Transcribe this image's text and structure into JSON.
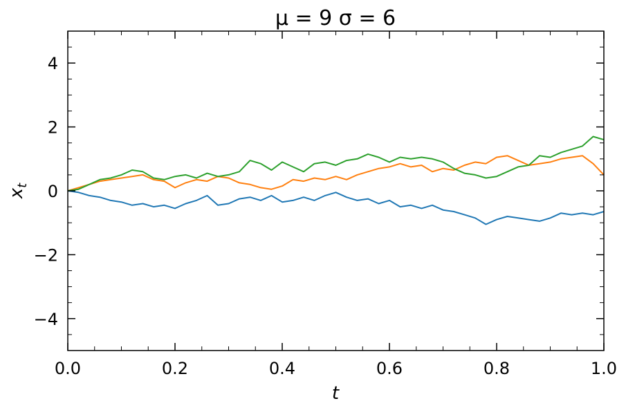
{
  "chart_data": {
    "type": "line",
    "title": "μ =  9 σ =  6",
    "xlabel": "t",
    "ylabel": "x_t",
    "xlim": [
      0.0,
      1.0
    ],
    "ylim": [
      -5,
      5
    ],
    "x_ticks": [
      0.0,
      0.2,
      0.4,
      0.6,
      0.8,
      1.0
    ],
    "x_tick_labels": [
      "0.0",
      "0.2",
      "0.4",
      "0.6",
      "0.8",
      "1.0"
    ],
    "y_ticks": [
      -4,
      -2,
      0,
      2,
      4
    ],
    "y_tick_labels": [
      "−4",
      "−2",
      "0",
      "2",
      "4"
    ],
    "grid": false,
    "series": [
      {
        "color": "#1f77b4",
        "x": [
          0.0,
          0.02,
          0.04,
          0.06,
          0.08,
          0.1,
          0.12,
          0.14,
          0.16,
          0.18,
          0.2,
          0.22,
          0.24,
          0.26,
          0.28,
          0.3,
          0.32,
          0.34,
          0.36,
          0.38,
          0.4,
          0.42,
          0.44,
          0.46,
          0.48,
          0.5,
          0.52,
          0.54,
          0.56,
          0.58,
          0.6,
          0.62,
          0.64,
          0.66,
          0.68,
          0.7,
          0.72,
          0.74,
          0.76,
          0.78,
          0.8,
          0.82,
          0.84,
          0.86,
          0.88,
          0.9,
          0.92,
          0.94,
          0.96,
          0.98,
          1.0
        ],
        "values": [
          0.0,
          -0.05,
          -0.15,
          -0.2,
          -0.3,
          -0.35,
          -0.45,
          -0.4,
          -0.5,
          -0.45,
          -0.55,
          -0.4,
          -0.3,
          -0.15,
          -0.45,
          -0.4,
          -0.25,
          -0.2,
          -0.3,
          -0.15,
          -0.35,
          -0.3,
          -0.2,
          -0.3,
          -0.15,
          -0.05,
          -0.2,
          -0.3,
          -0.25,
          -0.4,
          -0.3,
          -0.5,
          -0.45,
          -0.55,
          -0.45,
          -0.6,
          -0.65,
          -0.75,
          -0.85,
          -1.05,
          -0.9,
          -0.8,
          -0.85,
          -0.9,
          -0.95,
          -0.85,
          -0.7,
          -0.75,
          -0.7,
          -0.75,
          -0.65
        ]
      },
      {
        "color": "#ff7f0e",
        "x": [
          0.0,
          0.02,
          0.04,
          0.06,
          0.08,
          0.1,
          0.12,
          0.14,
          0.16,
          0.18,
          0.2,
          0.22,
          0.24,
          0.26,
          0.28,
          0.3,
          0.32,
          0.34,
          0.36,
          0.38,
          0.4,
          0.42,
          0.44,
          0.46,
          0.48,
          0.5,
          0.52,
          0.54,
          0.56,
          0.58,
          0.6,
          0.62,
          0.64,
          0.66,
          0.68,
          0.7,
          0.72,
          0.74,
          0.76,
          0.78,
          0.8,
          0.82,
          0.84,
          0.86,
          0.88,
          0.9,
          0.92,
          0.94,
          0.96,
          0.98,
          1.0
        ],
        "values": [
          0.0,
          0.1,
          0.2,
          0.3,
          0.35,
          0.4,
          0.45,
          0.5,
          0.35,
          0.3,
          0.1,
          0.25,
          0.35,
          0.3,
          0.45,
          0.4,
          0.25,
          0.2,
          0.1,
          0.05,
          0.15,
          0.35,
          0.3,
          0.4,
          0.35,
          0.45,
          0.35,
          0.5,
          0.6,
          0.7,
          0.75,
          0.85,
          0.75,
          0.8,
          0.6,
          0.7,
          0.65,
          0.8,
          0.9,
          0.85,
          1.05,
          1.1,
          0.95,
          0.8,
          0.85,
          0.9,
          1.0,
          1.05,
          1.1,
          0.85,
          0.5
        ]
      },
      {
        "color": "#2ca02c",
        "x": [
          0.0,
          0.02,
          0.04,
          0.06,
          0.08,
          0.1,
          0.12,
          0.14,
          0.16,
          0.18,
          0.2,
          0.22,
          0.24,
          0.26,
          0.28,
          0.3,
          0.32,
          0.34,
          0.36,
          0.38,
          0.4,
          0.42,
          0.44,
          0.46,
          0.48,
          0.5,
          0.52,
          0.54,
          0.56,
          0.58,
          0.6,
          0.62,
          0.64,
          0.66,
          0.68,
          0.7,
          0.72,
          0.74,
          0.76,
          0.78,
          0.8,
          0.82,
          0.84,
          0.86,
          0.88,
          0.9,
          0.92,
          0.94,
          0.96,
          0.98,
          1.0
        ],
        "values": [
          0.0,
          0.05,
          0.2,
          0.35,
          0.4,
          0.5,
          0.65,
          0.6,
          0.4,
          0.35,
          0.45,
          0.5,
          0.4,
          0.55,
          0.45,
          0.5,
          0.6,
          0.95,
          0.85,
          0.65,
          0.9,
          0.75,
          0.6,
          0.85,
          0.9,
          0.8,
          0.95,
          1.0,
          1.15,
          1.05,
          0.9,
          1.05,
          1.0,
          1.05,
          1.0,
          0.9,
          0.7,
          0.55,
          0.5,
          0.4,
          0.45,
          0.6,
          0.75,
          0.8,
          1.1,
          1.05,
          1.2,
          1.3,
          1.4,
          1.7,
          1.6
        ]
      }
    ]
  }
}
